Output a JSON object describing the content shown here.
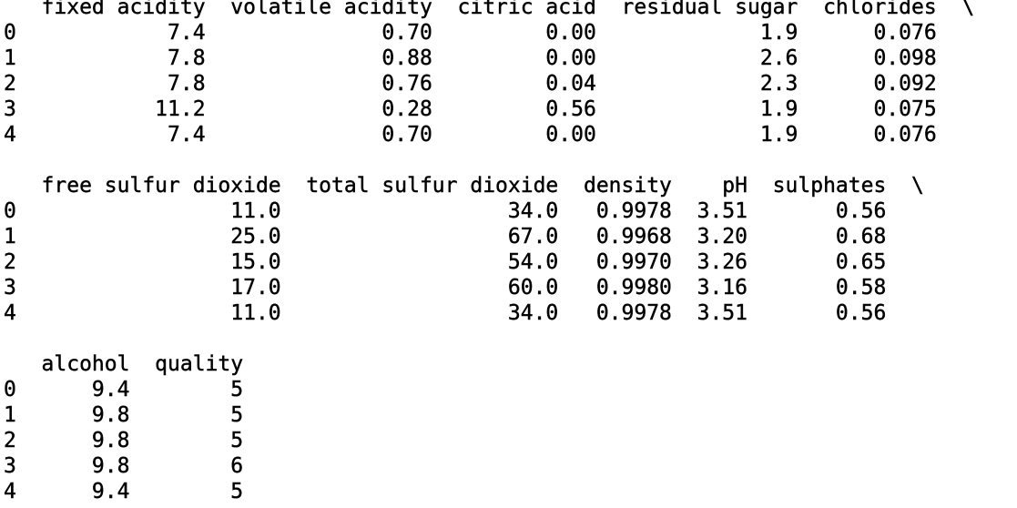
{
  "output": {
    "blocks": [
      {
        "header": "   fixed acidity  volatile acidity  citric acid  residual sugar  chlorides  \\",
        "rows": [
          "0            7.4              0.70         0.00             1.9      0.076   ",
          "1            7.8              0.88         0.00             2.6      0.098   ",
          "2            7.8              0.76         0.04             2.3      0.092   ",
          "3           11.2              0.28         0.56             1.9      0.075   ",
          "4            7.4              0.70         0.00             1.9      0.076   "
        ]
      },
      {
        "header": "   free sulfur dioxide  total sulfur dioxide  density    pH  sulphates  \\",
        "rows": [
          "0                 11.0                  34.0   0.9978  3.51       0.56   ",
          "1                 25.0                  67.0   0.9968  3.20       0.68   ",
          "2                 15.0                  54.0   0.9970  3.26       0.65   ",
          "3                 17.0                  60.0   0.9980  3.16       0.58   ",
          "4                 11.0                  34.0   0.9978  3.51       0.56   "
        ]
      },
      {
        "header": "   alcohol  quality  ",
        "rows": [
          "0      9.4        5  ",
          "1      9.8        5  ",
          "2      9.8        5  ",
          "3      9.8        6  ",
          "4      9.4        5  "
        ]
      }
    ]
  }
}
